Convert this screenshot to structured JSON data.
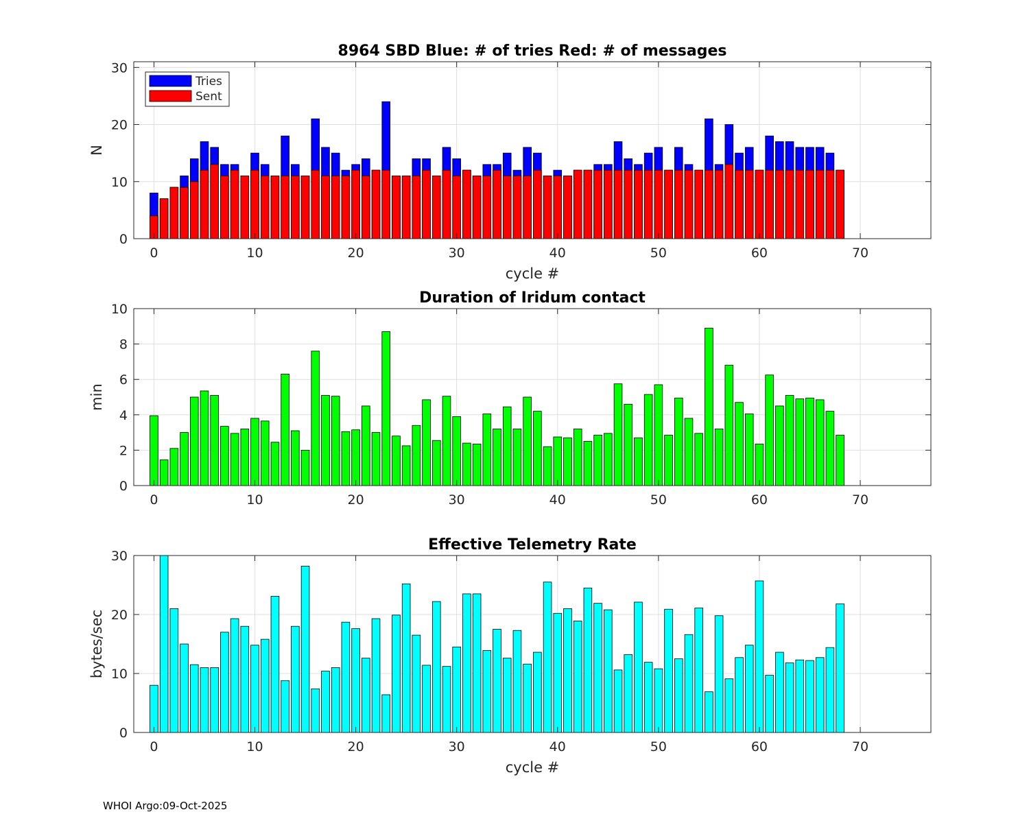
{
  "footer": "WHOI Argo:09-Oct-2025",
  "colors": {
    "tries": "#0000ff",
    "sent": "#ff0000",
    "duration": "#00ff00",
    "rate": "#00ffff",
    "grid": "#dfdfdf",
    "axis": "#262626"
  },
  "chart_data": [
    {
      "type": "bar",
      "title": "8964 SBD  Blue: # of tries   Red: # of messages",
      "xlabel": "cycle #",
      "ylabel": "N",
      "xlim": [
        -2,
        77
      ],
      "ylim": [
        0,
        31
      ],
      "xticks": [
        0,
        10,
        20,
        30,
        40,
        50,
        60,
        70
      ],
      "yticks": [
        0,
        10,
        20,
        30
      ],
      "grid": true,
      "legend": {
        "placement": "top-left",
        "entries": [
          "Tries",
          "Sent"
        ]
      },
      "x": [
        0,
        1,
        2,
        3,
        4,
        5,
        6,
        7,
        8,
        9,
        10,
        11,
        12,
        13,
        14,
        15,
        16,
        17,
        18,
        19,
        20,
        21,
        22,
        23,
        24,
        25,
        26,
        27,
        28,
        29,
        30,
        31,
        32,
        33,
        34,
        35,
        36,
        37,
        38,
        39,
        40,
        41,
        42,
        43,
        44,
        45,
        46,
        47,
        48,
        49,
        50,
        51,
        52,
        53,
        54,
        55,
        56,
        57,
        58,
        59,
        60,
        61,
        62,
        63,
        64,
        65,
        66,
        67,
        68
      ],
      "series": [
        {
          "name": "Tries",
          "color": "#0000ff",
          "values": [
            8,
            7,
            9,
            11,
            14,
            17,
            16,
            13,
            13,
            11,
            15,
            13,
            11,
            18,
            13,
            11,
            21,
            16,
            15,
            12,
            13,
            14,
            12,
            24,
            11,
            11,
            14,
            14,
            11,
            16,
            14,
            12,
            11,
            13,
            13,
            15,
            12,
            16,
            15,
            11,
            12,
            11,
            12,
            12,
            13,
            13,
            17,
            14,
            13,
            15,
            16,
            12,
            16,
            13,
            12,
            21,
            13,
            20,
            15,
            16,
            12,
            18,
            17,
            17,
            16,
            16,
            16,
            15,
            12
          ]
        },
        {
          "name": "Sent",
          "color": "#ff0000",
          "values": [
            4,
            7,
            9,
            9,
            10,
            12,
            13,
            11,
            12,
            11,
            12,
            11,
            11,
            11,
            11,
            11,
            12,
            11,
            11,
            11,
            12,
            11,
            12,
            12,
            11,
            11,
            11,
            12,
            11,
            12,
            11,
            12,
            11,
            11,
            12,
            11,
            11,
            11,
            12,
            11,
            11,
            11,
            12,
            12,
            12,
            12,
            12,
            12,
            12,
            12,
            12,
            12,
            12,
            12,
            12,
            12,
            12,
            13,
            12,
            12,
            12,
            12,
            12,
            12,
            12,
            12,
            12,
            12,
            12
          ]
        }
      ]
    },
    {
      "type": "bar",
      "title": "Duration of Iridum contact",
      "xlabel": "",
      "ylabel": "min",
      "xlim": [
        -2,
        77
      ],
      "ylim": [
        0,
        10
      ],
      "xticks": [
        0,
        10,
        20,
        30,
        40,
        50,
        60,
        70
      ],
      "yticks": [
        0,
        2,
        4,
        6,
        8,
        10
      ],
      "grid": true,
      "x": [
        0,
        1,
        2,
        3,
        4,
        5,
        6,
        7,
        8,
        9,
        10,
        11,
        12,
        13,
        14,
        15,
        16,
        17,
        18,
        19,
        20,
        21,
        22,
        23,
        24,
        25,
        26,
        27,
        28,
        29,
        30,
        31,
        32,
        33,
        34,
        35,
        36,
        37,
        38,
        39,
        40,
        41,
        42,
        43,
        44,
        45,
        46,
        47,
        48,
        49,
        50,
        51,
        52,
        53,
        54,
        55,
        56,
        57,
        58,
        59,
        60,
        61,
        62,
        63,
        64,
        65,
        66,
        67,
        68
      ],
      "series": [
        {
          "name": "Duration",
          "color": "#00ff00",
          "values": [
            3.95,
            1.45,
            2.1,
            3.0,
            5.0,
            5.35,
            5.1,
            3.35,
            2.95,
            3.2,
            3.8,
            3.65,
            2.45,
            6.3,
            3.1,
            2.0,
            7.6,
            5.1,
            5.05,
            3.05,
            3.15,
            4.5,
            3.0,
            8.7,
            2.8,
            2.25,
            3.4,
            4.85,
            2.55,
            5.05,
            3.9,
            2.4,
            2.35,
            4.05,
            3.2,
            4.45,
            3.2,
            5.0,
            4.2,
            2.2,
            2.75,
            2.7,
            3.2,
            2.5,
            2.85,
            2.95,
            5.75,
            4.6,
            2.7,
            5.15,
            5.7,
            2.85,
            4.95,
            3.8,
            2.95,
            8.9,
            3.2,
            6.8,
            4.7,
            4.05,
            2.35,
            6.25,
            4.5,
            5.1,
            4.9,
            4.95,
            4.85,
            4.2,
            2.85
          ]
        }
      ]
    },
    {
      "type": "bar",
      "title": "Effective Telemetry Rate",
      "xlabel": "cycle #",
      "ylabel": "bytes/sec",
      "xlim": [
        -2,
        77
      ],
      "ylim": [
        0,
        30
      ],
      "xticks": [
        0,
        10,
        20,
        30,
        40,
        50,
        60,
        70
      ],
      "yticks": [
        0,
        10,
        20,
        30
      ],
      "grid": true,
      "x": [
        0,
        1,
        2,
        3,
        4,
        5,
        6,
        7,
        8,
        9,
        10,
        11,
        12,
        13,
        14,
        15,
        16,
        17,
        18,
        19,
        20,
        21,
        22,
        23,
        24,
        25,
        26,
        27,
        28,
        29,
        30,
        31,
        32,
        33,
        34,
        35,
        36,
        37,
        38,
        39,
        40,
        41,
        42,
        43,
        44,
        45,
        46,
        47,
        48,
        49,
        50,
        51,
        52,
        53,
        54,
        55,
        56,
        57,
        58,
        59,
        60,
        61,
        62,
        63,
        64,
        65,
        66,
        67,
        68
      ],
      "series": [
        {
          "name": "Rate",
          "color": "#00ffff",
          "values": [
            8.0,
            31.0,
            21.0,
            15.0,
            11.5,
            11.0,
            11.0,
            17.0,
            19.3,
            18.0,
            14.8,
            15.8,
            23.1,
            8.8,
            18.0,
            28.2,
            7.4,
            10.4,
            11.0,
            18.7,
            17.6,
            12.6,
            19.3,
            6.4,
            19.9,
            25.2,
            16.5,
            11.4,
            22.2,
            11.2,
            14.5,
            23.5,
            23.5,
            13.9,
            17.5,
            12.6,
            17.3,
            11.6,
            13.6,
            25.5,
            20.2,
            21.0,
            18.9,
            24.5,
            21.9,
            20.8,
            10.6,
            13.2,
            22.1,
            11.9,
            10.8,
            20.9,
            12.5,
            16.6,
            21.1,
            6.9,
            19.8,
            9.1,
            12.7,
            14.8,
            25.7,
            9.7,
            13.6,
            11.8,
            12.3,
            12.2,
            12.7,
            14.4,
            21.8
          ]
        }
      ]
    }
  ]
}
